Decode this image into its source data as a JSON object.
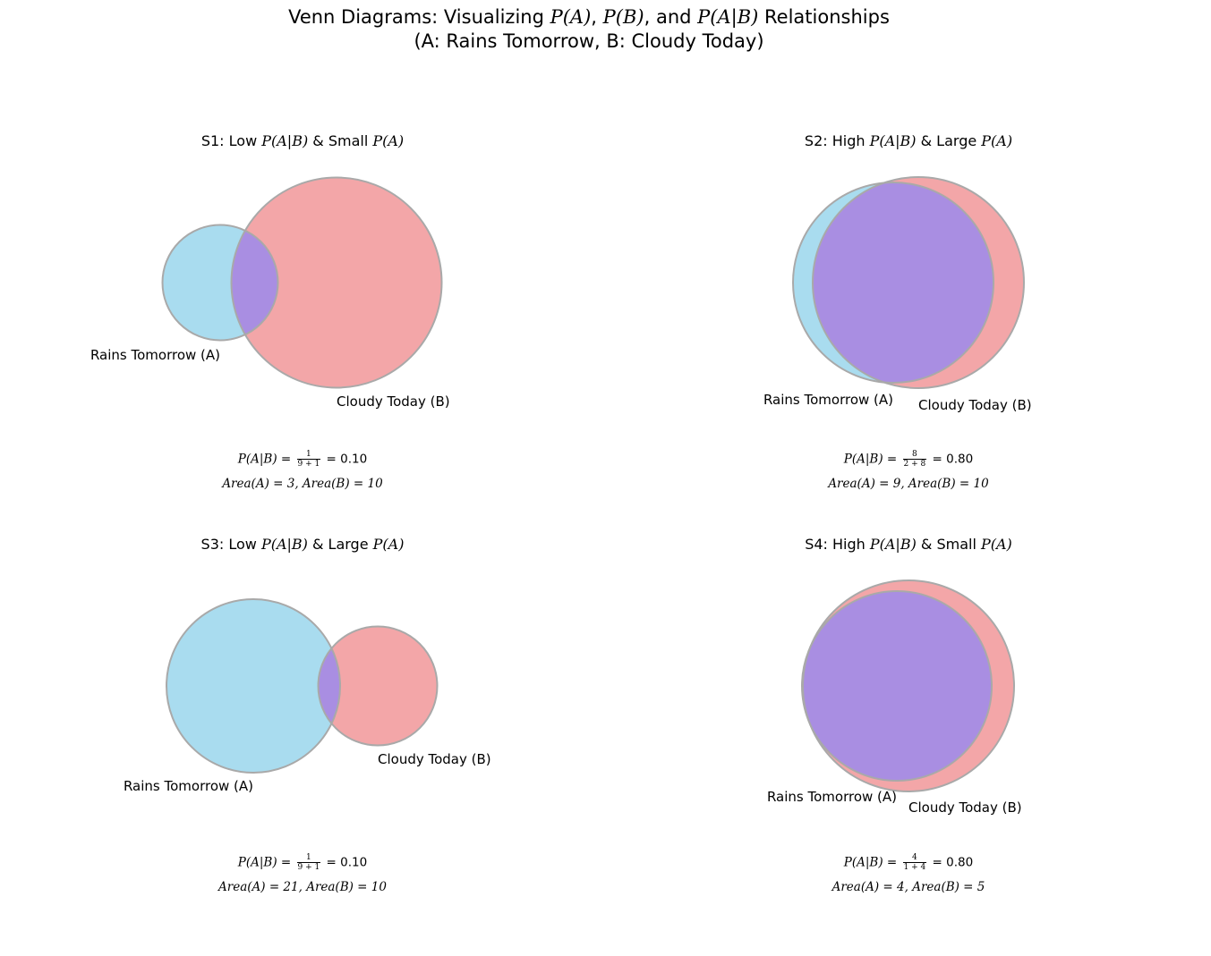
{
  "title_line1_pre": "Venn Diagrams: Visualizing ",
  "title_line1_post": " Relationships",
  "title_pa": "P(A)",
  "title_pb": "P(B)",
  "title_pab": "P(A|B)",
  "title_line2": "(A: Rains Tomorrow, B: Cloudy Today)",
  "colors": {
    "a": "#a9dcef",
    "b": "#f3a6a8",
    "overlap": "#a98ee2",
    "edge": "#a9a9a9"
  },
  "panels": [
    {
      "title_pre": "S1: Low ",
      "title_mid": " & Small ",
      "pab_label": "P(A|B)",
      "pa_label": "P(A)",
      "label_a": "Rains Tomorrow (A)",
      "label_b": "Cloudy Today (B)",
      "formula_lhs": "P(A|B)",
      "frac_num": "1",
      "frac_den": "9 + 1",
      "formula_result": "= 0.10",
      "area_line": "Area(A) = 3, Area(B) = 10",
      "area_a": 3,
      "area_b": 10,
      "overlap": 1
    },
    {
      "title_pre": "S2: High ",
      "title_mid": " & Large ",
      "pab_label": "P(A|B)",
      "pa_label": "P(A)",
      "label_a": "Rains Tomorrow (A)",
      "label_b": "Cloudy Today (B)",
      "formula_lhs": "P(A|B)",
      "frac_num": "8",
      "frac_den": "2 + 8",
      "formula_result": "= 0.80",
      "area_line": "Area(A) = 9, Area(B) = 10",
      "area_a": 9,
      "area_b": 10,
      "overlap": 8
    },
    {
      "title_pre": "S3: Low ",
      "title_mid": " & Large ",
      "pab_label": "P(A|B)",
      "pa_label": "P(A)",
      "label_a": "Rains Tomorrow (A)",
      "label_b": "Cloudy Today (B)",
      "formula_lhs": "P(A|B)",
      "frac_num": "1",
      "frac_den": "9 + 1",
      "formula_result": "= 0.10",
      "area_line": "Area(A) = 21, Area(B) = 10",
      "area_a": 21,
      "area_b": 10,
      "overlap": 1
    },
    {
      "title_pre": "S4: High ",
      "title_mid": " & Small ",
      "pab_label": "P(A|B)",
      "pa_label": "P(A)",
      "label_a": "Rains Tomorrow (A)",
      "label_b": "Cloudy Today (B)",
      "formula_lhs": "P(A|B)",
      "frac_num": "4",
      "frac_den": "1 + 4",
      "formula_result": "= 0.80",
      "area_line": "Area(A) = 4, Area(B) = 5",
      "area_a": 4,
      "area_b": 5,
      "overlap": 4
    }
  ]
}
